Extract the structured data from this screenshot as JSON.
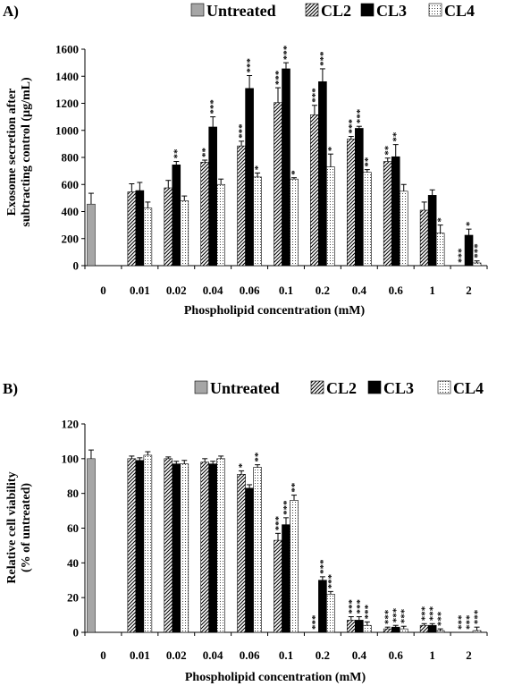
{
  "chart_data": [
    {
      "panel": "A)",
      "type": "bar",
      "ylabel": [
        "Exosome secretion after",
        "subtracting control (µg/mL)"
      ],
      "xlabel": "Phospholipid concentration (mM)",
      "ylim": [
        0,
        1600
      ],
      "yticks": [
        0,
        200,
        400,
        600,
        800,
        1000,
        1200,
        1400,
        1600
      ],
      "categories": [
        "0",
        "0.01",
        "0.02",
        "0.04",
        "0.06",
        "0.1",
        "0.2",
        "0.4",
        "0.6",
        "1",
        "2"
      ],
      "legend": [
        "Untreated",
        "CL2",
        "CL3",
        "CL4"
      ],
      "untreated": {
        "value": 455,
        "err": 80
      },
      "series": [
        {
          "name": "CL2",
          "values": [
            null,
            545,
            575,
            765,
            885,
            1205,
            1115,
            935,
            770,
            410,
            0
          ],
          "errors": [
            null,
            60,
            55,
            15,
            35,
            110,
            70,
            20,
            25,
            60,
            0
          ],
          "stars": [
            "",
            "",
            "",
            "**",
            "***",
            "***",
            "***",
            "***",
            "**",
            "",
            "***"
          ]
        },
        {
          "name": "CL3",
          "values": [
            null,
            555,
            745,
            1025,
            1310,
            1455,
            1360,
            1015,
            805,
            520,
            225
          ],
          "errors": [
            null,
            60,
            25,
            75,
            95,
            45,
            95,
            15,
            90,
            40,
            45
          ],
          "stars": [
            "",
            "",
            "**",
            "***",
            "***",
            "***",
            "***",
            "***",
            "**",
            "",
            "*"
          ]
        },
        {
          "name": "CL4",
          "values": [
            null,
            425,
            480,
            600,
            655,
            640,
            730,
            690,
            550,
            240,
            20
          ],
          "errors": [
            null,
            45,
            35,
            40,
            30,
            10,
            95,
            20,
            50,
            60,
            15
          ],
          "stars": [
            "",
            "",
            "",
            "",
            "*",
            "*",
            "*",
            "**",
            "",
            "*",
            "***"
          ]
        }
      ]
    },
    {
      "panel": "B)",
      "type": "bar",
      "ylabel": [
        "Relative cell viability",
        "(% of untreated)"
      ],
      "xlabel": "Phospholipid concentration (mM)",
      "ylim": [
        0,
        120
      ],
      "yticks": [
        0,
        20,
        40,
        60,
        80,
        100,
        120
      ],
      "categories": [
        "0",
        "0.01",
        "0.02",
        "0.04",
        "0.06",
        "0.1",
        "0.2",
        "0.4",
        "0.6",
        "1",
        "2"
      ],
      "legend": [
        "Untreated",
        "CL2",
        "CL3",
        "CL4"
      ],
      "untreated": {
        "value": 100,
        "err": 5
      },
      "series": [
        {
          "name": "CL2",
          "values": [
            null,
            100,
            100,
            98,
            91,
            53,
            0,
            7,
            2,
            4,
            0
          ],
          "errors": [
            null,
            1.5,
            1,
            2,
            2,
            4,
            0,
            2,
            1,
            1,
            0
          ],
          "stars": [
            "",
            "",
            "",
            "",
            "*",
            "***",
            "***",
            "***",
            "***",
            "***",
            "***"
          ]
        },
        {
          "name": "CL3",
          "values": [
            null,
            99,
            97,
            97,
            83,
            62,
            30,
            7,
            3,
            4,
            0
          ],
          "errors": [
            null,
            1.5,
            1.5,
            1.5,
            2,
            4,
            2,
            2,
            1,
            1,
            0
          ],
          "stars": [
            "",
            "",
            "",
            "",
            "",
            "***",
            "***",
            "***",
            "***",
            "***",
            "***"
          ]
        },
        {
          "name": "CL4",
          "values": [
            null,
            102,
            97,
            100,
            95,
            76,
            22,
            4,
            2,
            1,
            1
          ],
          "errors": [
            null,
            2,
            2,
            1.5,
            1.5,
            3,
            1.5,
            2,
            1.5,
            1,
            2
          ],
          "stars": [
            "",
            "",
            "",
            "",
            "**",
            "**",
            "***",
            "***",
            "***",
            "***",
            "***"
          ]
        }
      ]
    }
  ]
}
